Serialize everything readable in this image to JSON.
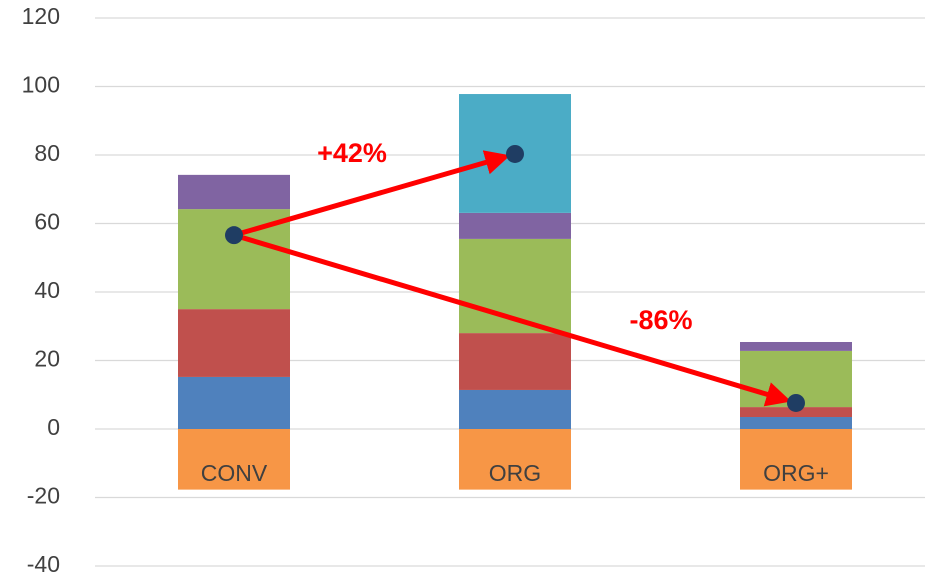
{
  "chart_data": {
    "type": "bar",
    "stacked": true,
    "categories": [
      "CONV",
      "ORG",
      "ORG+"
    ],
    "series": [
      {
        "color": "#f79646",
        "values": [
          -17.7,
          -17.7,
          -17.7
        ]
      },
      {
        "color": "#4f81bd",
        "values": [
          15.2,
          11.4,
          3.5
        ]
      },
      {
        "color": "#c0504d",
        "values": [
          19.8,
          16.6,
          2.9
        ]
      },
      {
        "color": "#9bbb59",
        "values": [
          29.2,
          27.5,
          16.4
        ]
      },
      {
        "color": "#8064a2",
        "values": [
          10,
          7.6,
          2.6
        ]
      },
      {
        "color": "#4bacc6",
        "values": [
          null,
          34.7,
          null
        ]
      }
    ],
    "points": {
      "color": "#1f3d63",
      "values": [
        56.6,
        80.3,
        7.6
      ]
    },
    "annotations": [
      "+42%",
      "-86%"
    ],
    "annotation_color": "#ff0000",
    "ylim": [
      -40,
      120
    ],
    "yticks": [
      -40,
      -20,
      0,
      20,
      40,
      60,
      80,
      100,
      120
    ],
    "grid": true
  }
}
